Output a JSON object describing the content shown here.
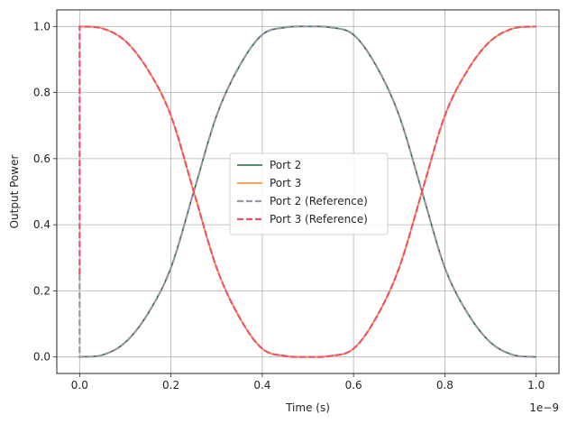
{
  "chart_data": {
    "type": "line",
    "title": "",
    "xlabel": "Time (s)",
    "ylabel": "Output Power",
    "x_offset_label": "1e−9",
    "xlim": [
      -0.05,
      1.05
    ],
    "ylim": [
      -0.05,
      1.05
    ],
    "x_ticks": [
      0.0,
      0.2,
      0.4,
      0.6,
      0.8,
      1.0
    ],
    "x_tick_labels": [
      "0.0",
      "0.2",
      "0.4",
      "0.6",
      "0.8",
      "1.0"
    ],
    "y_ticks": [
      0.0,
      0.2,
      0.4,
      0.6,
      0.8,
      1.0
    ],
    "y_tick_labels": [
      "0.0",
      "0.2",
      "0.4",
      "0.6",
      "0.8",
      "1.0"
    ],
    "grid": true,
    "legend_position": "center",
    "x": [
      0.0,
      0.05,
      0.1,
      0.15,
      0.2,
      0.25,
      0.3,
      0.35,
      0.4,
      0.45,
      0.5,
      0.55,
      0.6,
      0.65,
      0.7,
      0.75,
      0.8,
      0.85,
      0.9,
      0.95,
      1.0
    ],
    "series": [
      {
        "name": "Port 2",
        "color": "#1f6b3a",
        "dash": "solid",
        "values": [
          0.0,
          0.006,
          0.044,
          0.132,
          0.27,
          0.5,
          0.73,
          0.88,
          0.975,
          0.997,
          1.0,
          0.997,
          0.975,
          0.88,
          0.73,
          0.5,
          0.27,
          0.132,
          0.044,
          0.006,
          0.0
        ]
      },
      {
        "name": "Port 3",
        "color": "#f58220",
        "dash": "solid",
        "values": [
          1.0,
          0.994,
          0.956,
          0.868,
          0.73,
          0.5,
          0.27,
          0.12,
          0.025,
          0.003,
          0.0,
          0.003,
          0.025,
          0.12,
          0.27,
          0.5,
          0.73,
          0.868,
          0.956,
          0.994,
          1.0
        ]
      },
      {
        "name": "Port 2 (Reference)",
        "color": "#9b95a8",
        "dash": "dashed",
        "values": [
          0.0,
          0.006,
          0.044,
          0.132,
          0.27,
          0.5,
          0.73,
          0.88,
          0.975,
          0.997,
          1.0,
          0.997,
          0.975,
          0.88,
          0.73,
          0.5,
          0.27,
          0.132,
          0.044,
          0.006,
          0.0
        ],
        "initial_spike": [
          0.0,
          0.25
        ]
      },
      {
        "name": "Port 3 (Reference)",
        "color": "#f0506e",
        "dash": "dashed",
        "values": [
          1.0,
          0.994,
          0.956,
          0.868,
          0.73,
          0.5,
          0.27,
          0.12,
          0.025,
          0.003,
          0.0,
          0.003,
          0.025,
          0.12,
          0.27,
          0.5,
          0.73,
          0.868,
          0.956,
          0.994,
          1.0
        ],
        "initial_spike": [
          0.0,
          0.25
        ]
      }
    ]
  }
}
